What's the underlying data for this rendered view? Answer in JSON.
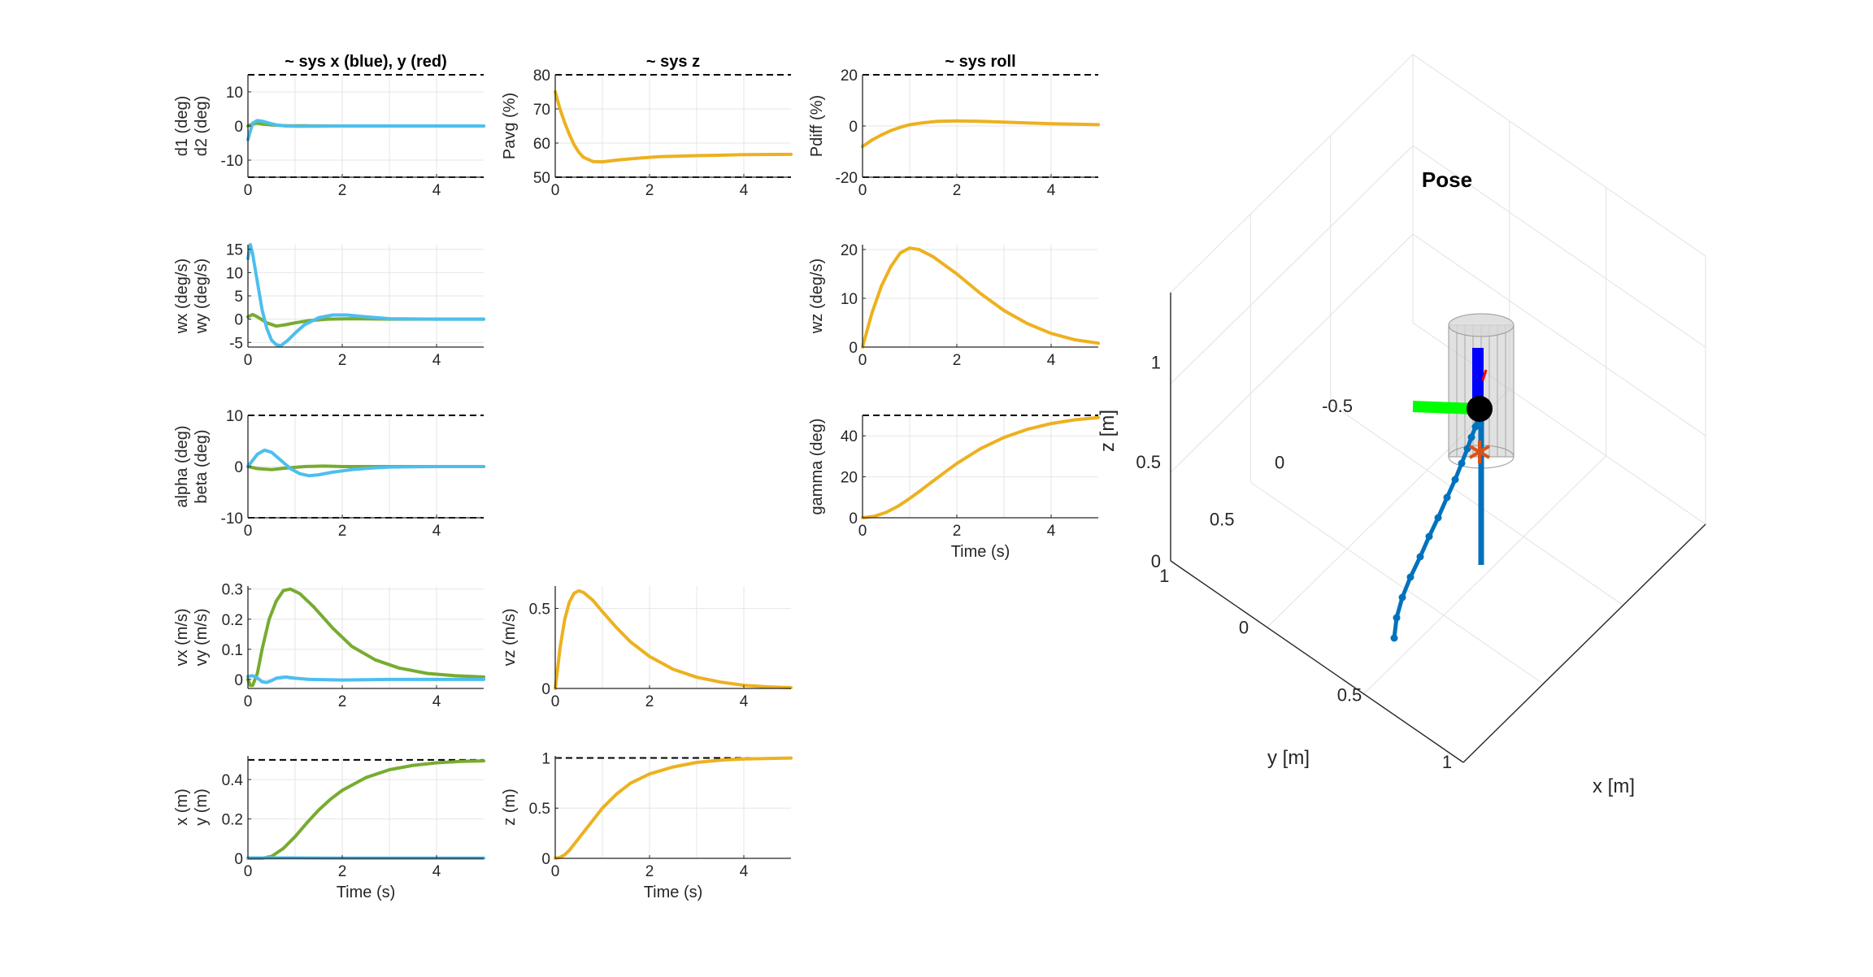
{
  "figure": {
    "colors": {
      "series_x": "#77AC30",
      "series_y": "#4DBEEE",
      "series_main": "#EDB120",
      "grid": "#E6E6E6",
      "axis": "#262626",
      "limit": "#000000",
      "traj": "#0072BD",
      "body_x": "#00FF00",
      "body_z": "#0000FF",
      "setpoint": "#D95319",
      "cylinder": "#C8C8C8"
    }
  },
  "chart_data": [
    {
      "id": "d",
      "type": "line",
      "title": "~ sys x (blue), y (red)",
      "ylabel_lines": [
        "d1 (deg)",
        "d2 (deg)"
      ],
      "xlabel": "",
      "xlim": [
        0,
        5
      ],
      "ylim": [
        -15,
        15
      ],
      "xticks": [
        "0",
        "2",
        "4"
      ],
      "yticks": [
        "-10",
        "0",
        "10"
      ],
      "ytick_values": [
        -10,
        0,
        10
      ],
      "limits": [
        15,
        -15
      ],
      "series": [
        {
          "color_key": "series_x",
          "x": [
            0,
            0.1,
            0.2,
            0.3,
            0.5,
            0.8,
            1.2,
            2,
            3,
            4,
            5
          ],
          "y": [
            0,
            0.6,
            0.8,
            0.6,
            0.3,
            0.1,
            0.05,
            0,
            0,
            0,
            0
          ]
        },
        {
          "color_key": "series_y",
          "x": [
            0,
            0.05,
            0.1,
            0.2,
            0.3,
            0.45,
            0.6,
            0.8,
            1.1,
            1.5,
            2,
            3,
            4,
            5
          ],
          "y": [
            -4,
            -1.5,
            0.8,
            1.6,
            1.4,
            0.8,
            0.3,
            0,
            -0.1,
            -0.05,
            0,
            0,
            0,
            0
          ]
        }
      ]
    },
    {
      "id": "pavg",
      "type": "line",
      "title": "~ sys z",
      "ylabel_lines": [
        "Pavg (%)"
      ],
      "xlabel": "",
      "xlim": [
        0,
        5
      ],
      "ylim": [
        50,
        80
      ],
      "xticks": [
        "0",
        "2",
        "4"
      ],
      "yticks": [
        "50",
        "60",
        "70",
        "80"
      ],
      "ytick_values": [
        50,
        60,
        70,
        80
      ],
      "limits": [
        80,
        50
      ],
      "series": [
        {
          "color_key": "series_main",
          "x": [
            0,
            0.1,
            0.2,
            0.3,
            0.4,
            0.5,
            0.6,
            0.8,
            1,
            1.3,
            1.7,
            2.2,
            3,
            4,
            5
          ],
          "y": [
            75,
            70,
            66,
            62.5,
            59.5,
            57.3,
            55.8,
            54.6,
            54.5,
            55,
            55.5,
            56,
            56.3,
            56.6,
            56.7
          ]
        }
      ]
    },
    {
      "id": "pdiff",
      "type": "line",
      "title": "~ sys roll",
      "ylabel_lines": [
        "Pdiff (%)"
      ],
      "xlabel": "",
      "xlim": [
        0,
        5
      ],
      "ylim": [
        -20,
        20
      ],
      "xticks": [
        "0",
        "2",
        "4"
      ],
      "yticks": [
        "-20",
        "0",
        "20"
      ],
      "ytick_values": [
        -20,
        0,
        20
      ],
      "limits": [
        20,
        -20
      ],
      "series": [
        {
          "color_key": "series_main",
          "x": [
            0,
            0.2,
            0.4,
            0.6,
            0.8,
            1,
            1.3,
            1.6,
            2,
            2.5,
            3,
            3.5,
            4,
            4.5,
            5
          ],
          "y": [
            -8,
            -5.5,
            -3.5,
            -1.8,
            -0.5,
            0.5,
            1.3,
            1.8,
            2,
            1.8,
            1.5,
            1.2,
            0.9,
            0.7,
            0.5
          ]
        }
      ]
    },
    {
      "id": "w",
      "type": "line",
      "title": "",
      "ylabel_lines": [
        "wx (deg/s)",
        "wy (deg/s)"
      ],
      "xlabel": "",
      "xlim": [
        0,
        5
      ],
      "ylim": [
        -6,
        16
      ],
      "xticks": [
        "0",
        "2",
        "4"
      ],
      "yticks": [
        "-5",
        "0",
        "5",
        "10",
        "15"
      ],
      "ytick_values": [
        -5,
        0,
        5,
        10,
        15
      ],
      "limits": [],
      "series": [
        {
          "color_key": "series_x",
          "x": [
            0,
            0.1,
            0.2,
            0.4,
            0.6,
            0.8,
            1,
            1.3,
            1.7,
            2.2,
            3,
            4,
            5
          ],
          "y": [
            0.5,
            1,
            0.5,
            -0.8,
            -1.5,
            -1.2,
            -0.8,
            -0.3,
            0,
            0.1,
            0,
            0,
            0
          ]
        },
        {
          "color_key": "series_y",
          "x": [
            0,
            0.05,
            0.1,
            0.2,
            0.3,
            0.4,
            0.5,
            0.6,
            0.7,
            0.85,
            1,
            1.2,
            1.5,
            1.8,
            2.1,
            2.5,
            3,
            4,
            5
          ],
          "y": [
            13,
            16,
            14,
            8,
            2,
            -2,
            -4.5,
            -5.5,
            -5.7,
            -4.5,
            -3,
            -1.2,
            0.3,
            0.9,
            0.9,
            0.5,
            0.1,
            0,
            0
          ]
        }
      ]
    },
    {
      "id": "wz",
      "type": "line",
      "title": "",
      "ylabel_lines": [
        "wz (deg/s)"
      ],
      "xlabel": "",
      "xlim": [
        0,
        5
      ],
      "ylim": [
        0,
        21
      ],
      "xticks": [
        "0",
        "2",
        "4"
      ],
      "yticks": [
        "0",
        "10",
        "20"
      ],
      "ytick_values": [
        0,
        10,
        20
      ],
      "limits": [],
      "series": [
        {
          "color_key": "series_main",
          "x": [
            0,
            0.1,
            0.2,
            0.4,
            0.6,
            0.8,
            1,
            1.2,
            1.5,
            2,
            2.5,
            3,
            3.5,
            4,
            4.5,
            5
          ],
          "y": [
            0,
            3.5,
            7,
            12.5,
            16.5,
            19.3,
            20.3,
            20,
            18.5,
            15,
            11,
            7.5,
            4.8,
            2.8,
            1.5,
            0.8
          ]
        }
      ]
    },
    {
      "id": "ab",
      "type": "line",
      "title": "",
      "ylabel_lines": [
        "alpha (deg)",
        "beta (deg)"
      ],
      "xlabel": "",
      "xlim": [
        0,
        5
      ],
      "ylim": [
        -10,
        10
      ],
      "xticks": [
        "0",
        "2",
        "4"
      ],
      "yticks": [
        "-10",
        "0",
        "10"
      ],
      "ytick_values": [
        -10,
        0,
        10
      ],
      "limits": [
        10,
        -10
      ],
      "series": [
        {
          "color_key": "series_x",
          "x": [
            0,
            0.2,
            0.5,
            0.8,
            1.2,
            1.6,
            2,
            3,
            4,
            5
          ],
          "y": [
            0,
            -0.4,
            -0.6,
            -0.3,
            0,
            0.1,
            0,
            0,
            0,
            0
          ]
        },
        {
          "color_key": "series_y",
          "x": [
            0,
            0.1,
            0.2,
            0.35,
            0.5,
            0.7,
            0.9,
            1.1,
            1.3,
            1.5,
            1.8,
            2.2,
            2.6,
            3,
            4,
            5
          ],
          "y": [
            0,
            1.2,
            2.4,
            3.2,
            2.8,
            1.2,
            -0.4,
            -1.4,
            -1.8,
            -1.6,
            -1.1,
            -0.6,
            -0.3,
            -0.1,
            0,
            0
          ]
        }
      ]
    },
    {
      "id": "gamma",
      "type": "line",
      "title": "",
      "ylabel_lines": [
        "gamma (deg)"
      ],
      "xlabel": "Time (s)",
      "xlim": [
        0,
        5
      ],
      "ylim": [
        0,
        50
      ],
      "xticks": [
        "0",
        "2",
        "4"
      ],
      "yticks": [
        "0",
        "20",
        "40"
      ],
      "ytick_values": [
        0,
        20,
        40
      ],
      "limits": [
        50
      ],
      "series": [
        {
          "color_key": "series_main",
          "x": [
            0,
            0.25,
            0.5,
            0.75,
            1,
            1.25,
            1.5,
            1.75,
            2,
            2.5,
            3,
            3.5,
            4,
            4.5,
            5
          ],
          "y": [
            0,
            0.7,
            2.6,
            5.6,
            9.4,
            13.6,
            18,
            22.3,
            26.5,
            33.7,
            39.2,
            43.2,
            46,
            47.8,
            48.9
          ]
        }
      ]
    },
    {
      "id": "v",
      "type": "line",
      "title": "",
      "ylabel_lines": [
        "vx (m/s)",
        "vy (m/s)"
      ],
      "xlabel": "",
      "xlim": [
        0,
        5
      ],
      "ylim": [
        -0.03,
        0.31
      ],
      "xticks": [
        "0",
        "2",
        "4"
      ],
      "yticks": [
        "0",
        "0.1",
        "0.2",
        "0.3"
      ],
      "ytick_values": [
        0,
        0.1,
        0.2,
        0.3
      ],
      "limits": [],
      "series": [
        {
          "color_key": "series_x",
          "x": [
            0,
            0.05,
            0.1,
            0.2,
            0.3,
            0.45,
            0.6,
            0.75,
            0.9,
            1.1,
            1.4,
            1.8,
            2.2,
            2.7,
            3.2,
            3.8,
            4.4,
            5
          ],
          "y": [
            0,
            -0.02,
            -0.02,
            0.02,
            0.1,
            0.2,
            0.26,
            0.295,
            0.3,
            0.285,
            0.24,
            0.17,
            0.11,
            0.065,
            0.038,
            0.02,
            0.012,
            0.008
          ]
        },
        {
          "color_key": "series_y",
          "x": [
            0,
            0.1,
            0.2,
            0.3,
            0.4,
            0.5,
            0.6,
            0.8,
            1,
            1.3,
            2,
            3,
            4,
            5
          ],
          "y": [
            0.01,
            0.012,
            0.005,
            -0.008,
            -0.01,
            -0.004,
            0.004,
            0.008,
            0.004,
            0,
            -0.002,
            0,
            0,
            0
          ]
        }
      ]
    },
    {
      "id": "vz",
      "type": "line",
      "title": "",
      "ylabel_lines": [
        "vz (m/s)"
      ],
      "xlabel": "",
      "xlim": [
        0,
        5
      ],
      "ylim": [
        0,
        0.64
      ],
      "xticks": [
        "0",
        "2",
        "4"
      ],
      "yticks": [
        "0",
        "0.5"
      ],
      "ytick_values": [
        0,
        0.5
      ],
      "limits": [],
      "series": [
        {
          "color_key": "series_main",
          "x": [
            0,
            0.05,
            0.1,
            0.2,
            0.3,
            0.4,
            0.5,
            0.6,
            0.8,
            1,
            1.3,
            1.6,
            2,
            2.5,
            3,
            3.5,
            4,
            4.5,
            5
          ],
          "y": [
            0,
            0.12,
            0.25,
            0.43,
            0.54,
            0.595,
            0.61,
            0.6,
            0.55,
            0.48,
            0.38,
            0.29,
            0.2,
            0.12,
            0.07,
            0.04,
            0.02,
            0.01,
            0.005
          ]
        }
      ]
    },
    {
      "id": "xy",
      "type": "line",
      "title": "",
      "ylabel_lines": [
        "x (m)",
        "y (m)"
      ],
      "xlabel": "Time (s)",
      "xlim": [
        0,
        5
      ],
      "ylim": [
        0,
        0.52
      ],
      "xticks": [
        "0",
        "2",
        "4"
      ],
      "yticks": [
        "0",
        "0.2",
        "0.4"
      ],
      "ytick_values": [
        0,
        0.2,
        0.4
      ],
      "limits": [
        0.5,
        0
      ],
      "series": [
        {
          "color_key": "series_x",
          "x": [
            0,
            0.3,
            0.5,
            0.75,
            1,
            1.25,
            1.5,
            1.75,
            2,
            2.5,
            3,
            3.5,
            4,
            4.5,
            5
          ],
          "y": [
            0,
            0,
            0.01,
            0.05,
            0.11,
            0.18,
            0.245,
            0.3,
            0.345,
            0.41,
            0.45,
            0.472,
            0.485,
            0.492,
            0.495
          ]
        },
        {
          "color_key": "series_y",
          "x": [
            0,
            1,
            2,
            3,
            4,
            5
          ],
          "y": [
            0.002,
            0.002,
            0.001,
            0.001,
            0.001,
            0.001
          ]
        }
      ]
    },
    {
      "id": "z",
      "type": "line",
      "title": "",
      "ylabel_lines": [
        "z (m)"
      ],
      "xlabel": "Time (s)",
      "xlim": [
        0,
        5
      ],
      "ylim": [
        0,
        1.02
      ],
      "xticks": [
        "0",
        "2",
        "4"
      ],
      "yticks": [
        "0",
        "0.5",
        "1"
      ],
      "ytick_values": [
        0,
        0.5,
        1
      ],
      "limits": [
        1
      ],
      "series": [
        {
          "color_key": "series_main",
          "x": [
            0,
            0.1,
            0.2,
            0.3,
            0.4,
            0.6,
            0.8,
            1,
            1.3,
            1.6,
            2,
            2.5,
            3,
            3.5,
            4,
            5
          ],
          "y": [
            0,
            0.01,
            0.035,
            0.08,
            0.14,
            0.26,
            0.38,
            0.5,
            0.64,
            0.75,
            0.84,
            0.91,
            0.955,
            0.978,
            0.99,
            0.999
          ]
        }
      ]
    },
    {
      "id": "pose",
      "type": "scatter",
      "title": "Pose",
      "xlabel": "x [m]",
      "ylabel": "y [m]",
      "zlabel": "z [m]",
      "xticks": [
        "0",
        "0.5",
        "1"
      ],
      "yticks": [
        "-0.5",
        "0",
        "0.5",
        "1"
      ],
      "zticks": [
        "0",
        "0.5",
        "1"
      ],
      "xlim": [
        -0.3,
        1.2
      ],
      "ylim": [
        -1.0,
        1.1
      ],
      "zlim": [
        0,
        1.35
      ],
      "trajectory": {
        "x": [
          0.3,
          0.3,
          0.3,
          0.3,
          0.3,
          0.3,
          0.3,
          0.3,
          0.3,
          0.3,
          0.3,
          0.3,
          0.3,
          0.3,
          0.3
        ],
        "y": [
          0.05,
          0.04,
          0.03,
          0.02,
          0.01,
          0,
          -0.02,
          -0.05,
          -0.09,
          -0.14,
          -0.2,
          -0.25,
          -0.31,
          -0.36,
          -0.4
        ],
        "z": [
          0,
          0.05,
          0.1,
          0.15,
          0.2,
          0.25,
          0.3,
          0.35,
          0.4,
          0.45,
          0.5,
          0.55,
          0.65,
          0.75,
          0.9
        ]
      },
      "setpoint": {
        "x": 0.3,
        "y": -0.4,
        "z": 0.7
      }
    }
  ]
}
